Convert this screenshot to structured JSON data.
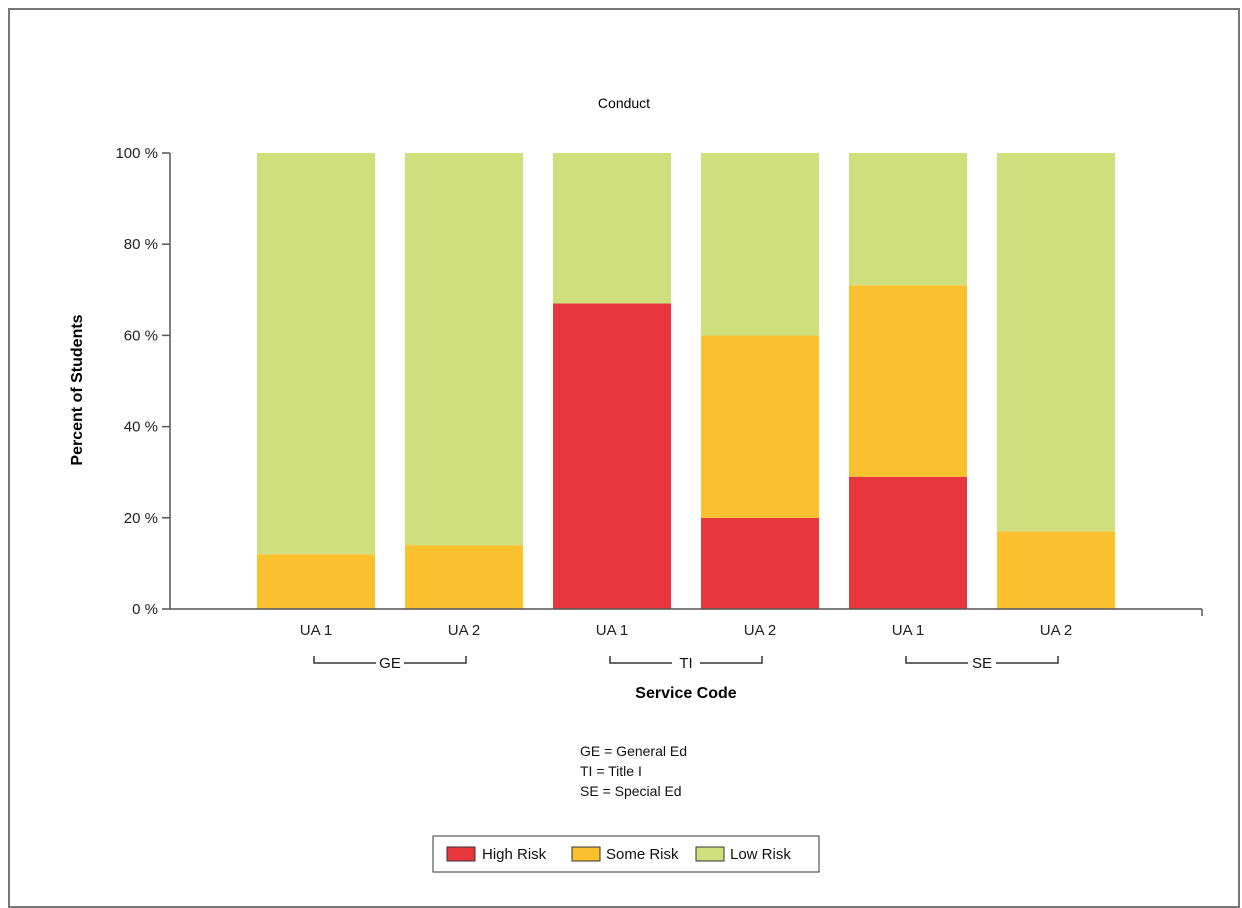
{
  "chart_data": {
    "type": "bar",
    "stacked": true,
    "title": "Conduct",
    "xlabel": "Service Code",
    "ylabel": "Percent of Students",
    "ylim": [
      0,
      100
    ],
    "y_ticks": [
      "0 %",
      "20 %",
      "40 %",
      "60 %",
      "80 %",
      "100 %"
    ],
    "categories": [
      "UA 1",
      "UA 2",
      "UA 1",
      "UA 2",
      "UA 1",
      "UA 2"
    ],
    "groups": [
      {
        "label": "GE",
        "categories": [
          0,
          1
        ]
      },
      {
        "label": "TI",
        "categories": [
          2,
          3
        ]
      },
      {
        "label": "SE",
        "categories": [
          4,
          5
        ]
      }
    ],
    "series": [
      {
        "name": "High Risk",
        "color": "#e8363d",
        "values": [
          0,
          0,
          67,
          20,
          29,
          0
        ]
      },
      {
        "name": "Some Risk",
        "color": "#fbc02d",
        "values": [
          12,
          14,
          0,
          40,
          42,
          17
        ]
      },
      {
        "name": "Low Risk",
        "color": "#d0df7e",
        "values": [
          88,
          86,
          33,
          40,
          29,
          83
        ]
      }
    ],
    "grid": false,
    "legend_position": "bottom-center",
    "notes": [
      "GE = General Ed",
      "TI = Title I",
      "SE = Special Ed"
    ]
  }
}
